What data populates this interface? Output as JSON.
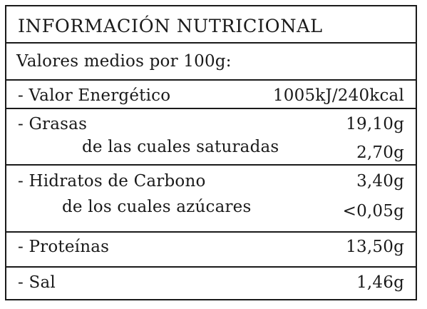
{
  "label": {
    "title": "INFORMACIÓN NUTRICIONAL",
    "subtitle": "Valores medios por 100g:",
    "rows": [
      {
        "name": "- Valor Energético",
        "value": "1005kJ/240kcal"
      },
      {
        "name": "- Grasas",
        "value": "19,10g"
      },
      {
        "name": "de las cuales saturadas",
        "value": "2,70g"
      },
      {
        "name": "- Hidratos de Carbono",
        "value": "3,40g"
      },
      {
        "name": "de los cuales azúcares",
        "value": "<0,05g"
      },
      {
        "name": "- Proteínas",
        "value": "13,50g"
      },
      {
        "name": "- Sal",
        "value": "1,46g"
      }
    ]
  }
}
